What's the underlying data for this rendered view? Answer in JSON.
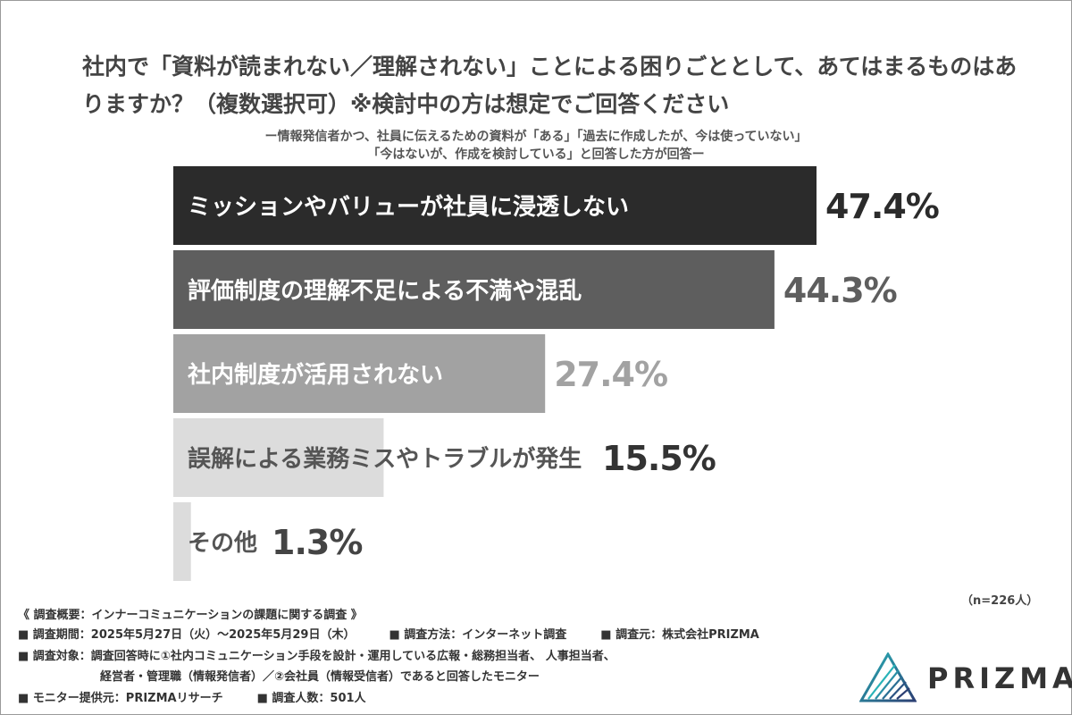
{
  "chart_data": {
    "type": "bar",
    "orientation": "horizontal",
    "title": "社内で「資料が読まれない／理解されない」ことによる困りごととして、あてはまるものはありますか？（複数選択可）※検討中の方は想定でご回答ください",
    "subtitle_lines": [
      "ー情報発信者かつ、社員に伝えるための資料が「ある」「過去に作成したが、今は使っていない」",
      "「今はないが、作成を検討している」と回答した方が回答ー"
    ],
    "categories": [
      "ミッションやバリューが社員に浸透しない",
      "評価制度の理解不足による不満や混乱",
      "社内制度が活用されない",
      "誤解による業務ミスやトラブルが発生",
      "その他"
    ],
    "values": [
      47.4,
      44.3,
      27.4,
      15.5,
      1.3
    ],
    "value_labels": [
      "47.4%",
      "44.3%",
      "27.4%",
      "15.5%",
      "1.3%"
    ],
    "colors": [
      "#2b2b2b",
      "#5e5e5e",
      "#a2a2a2",
      "#dcdcdc",
      "#dcdcdc"
    ],
    "label_colors": [
      "#ffffff",
      "#ffffff",
      "#ffffff",
      "#555555",
      "#555555"
    ],
    "value_colors": [
      "#2b2b2b",
      "#5e5e5e",
      "#a2a2a2",
      "#333333",
      "#444444"
    ],
    "xlim": [
      0,
      47.4
    ],
    "grid": false,
    "legend": "none",
    "n_note": "（n=226人）"
  },
  "footer": {
    "heading": "《 調査概要：インナーコミュニケーションの課題に関する調査 》",
    "period": "■ 調査期間：2025年5月27日（火）～2025年5月29日（木）",
    "method": "■ 調査方法：インターネット調査",
    "source": "■ 調査元：株式会社PRIZMA",
    "target1": "■ 調査対象：調査回答時に①社内コミュニケーション手段を設計・運用している広報・総務担当者、 人事担当者、",
    "target2": "経営者・管理職（情報発信者）／②会社員（情報受信者）であると回答したモニター",
    "provider": "■ モニター提供元：PRIZMAリサーチ",
    "count": "■ 調査人数：501人"
  },
  "logo": {
    "text": "PRIZMA",
    "colors": [
      "#1f9aa8",
      "#2b3f73"
    ]
  }
}
